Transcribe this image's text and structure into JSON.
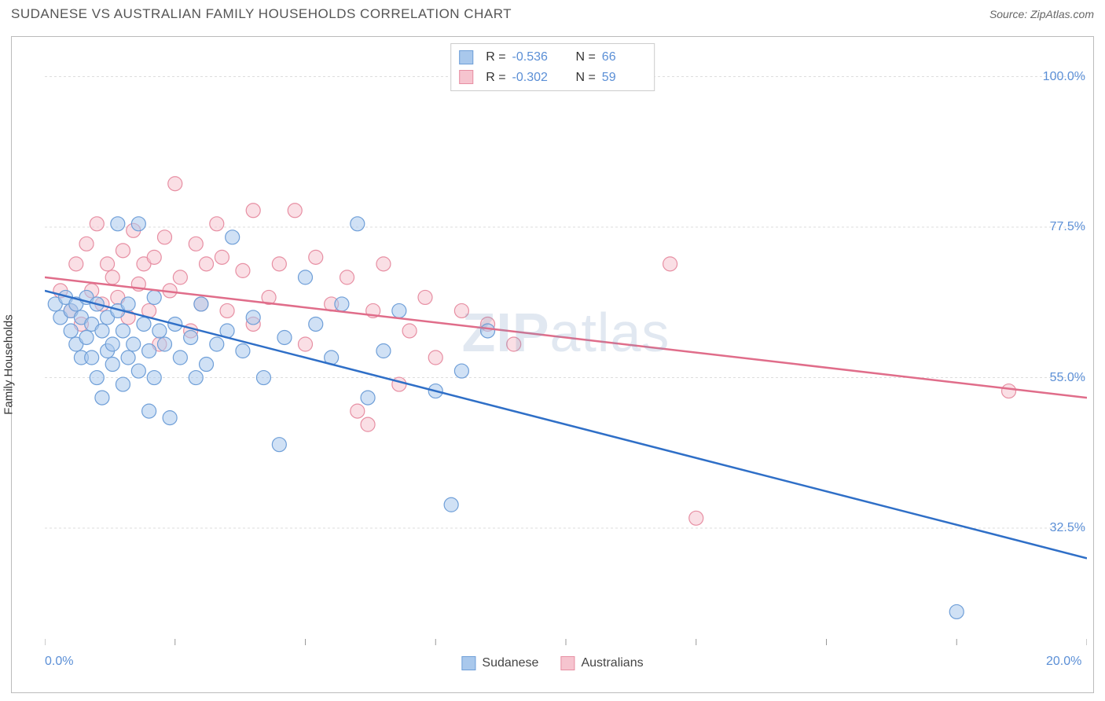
{
  "header": {
    "title": "SUDANESE VS AUSTRALIAN FAMILY HOUSEHOLDS CORRELATION CHART",
    "source": "Source: ZipAtlas.com"
  },
  "chart": {
    "type": "scatter",
    "ylabel": "Family Households",
    "background_color": "#ffffff",
    "grid_color": "#dddddd",
    "border_color": "#bbbbbb",
    "xlim": [
      0,
      20
    ],
    "ylim": [
      15,
      105
    ],
    "x_ticks": [
      0,
      2.5,
      5,
      7.5,
      10,
      12.5,
      15,
      17.5,
      20
    ],
    "x_tick_labels": {
      "0": "0.0%",
      "20": "20.0%"
    },
    "y_ticks": [
      32.5,
      55.0,
      77.5,
      100.0
    ],
    "y_tick_labels": [
      "32.5%",
      "55.0%",
      "77.5%",
      "100.0%"
    ],
    "y_label_color": "#5b8fd6",
    "x_label_color": "#5b8fd6",
    "marker_radius": 9,
    "marker_opacity": 0.55,
    "line_width": 2.5,
    "watermark": {
      "zip": "ZIP",
      "atlas": "atlas"
    },
    "series": [
      {
        "name": "Sudanese",
        "color_fill": "#a9c8ec",
        "color_stroke": "#6f9fd8",
        "line_color": "#2f6fc7",
        "R": "-0.536",
        "N": "66",
        "trend": {
          "x1": 0,
          "y1": 68,
          "x2": 20,
          "y2": 28
        },
        "points": [
          [
            0.2,
            66
          ],
          [
            0.3,
            64
          ],
          [
            0.4,
            67
          ],
          [
            0.5,
            62
          ],
          [
            0.5,
            65
          ],
          [
            0.6,
            60
          ],
          [
            0.6,
            66
          ],
          [
            0.7,
            58
          ],
          [
            0.7,
            64
          ],
          [
            0.8,
            67
          ],
          [
            0.8,
            61
          ],
          [
            0.9,
            63
          ],
          [
            0.9,
            58
          ],
          [
            1.0,
            66
          ],
          [
            1.0,
            55
          ],
          [
            1.1,
            62
          ],
          [
            1.1,
            52
          ],
          [
            1.2,
            64
          ],
          [
            1.2,
            59
          ],
          [
            1.3,
            57
          ],
          [
            1.3,
            60
          ],
          [
            1.4,
            65
          ],
          [
            1.4,
            78
          ],
          [
            1.5,
            62
          ],
          [
            1.5,
            54
          ],
          [
            1.6,
            58
          ],
          [
            1.6,
            66
          ],
          [
            1.7,
            60
          ],
          [
            1.8,
            56
          ],
          [
            1.8,
            78
          ],
          [
            1.9,
            63
          ],
          [
            2.0,
            50
          ],
          [
            2.0,
            59
          ],
          [
            2.1,
            55
          ],
          [
            2.1,
            67
          ],
          [
            2.2,
            62
          ],
          [
            2.3,
            60
          ],
          [
            2.4,
            49
          ],
          [
            2.5,
            63
          ],
          [
            2.6,
            58
          ],
          [
            2.8,
            61
          ],
          [
            2.9,
            55
          ],
          [
            3.0,
            66
          ],
          [
            3.1,
            57
          ],
          [
            3.3,
            60
          ],
          [
            3.5,
            62
          ],
          [
            3.6,
            76
          ],
          [
            3.8,
            59
          ],
          [
            4.0,
            64
          ],
          [
            4.2,
            55
          ],
          [
            4.5,
            45
          ],
          [
            4.6,
            61
          ],
          [
            5.0,
            70
          ],
          [
            5.2,
            63
          ],
          [
            5.5,
            58
          ],
          [
            5.7,
            66
          ],
          [
            6.0,
            78
          ],
          [
            6.2,
            52
          ],
          [
            6.5,
            59
          ],
          [
            6.8,
            65
          ],
          [
            7.5,
            53
          ],
          [
            7.8,
            36
          ],
          [
            8.0,
            56
          ],
          [
            8.5,
            62
          ],
          [
            17.5,
            20
          ]
        ]
      },
      {
        "name": "Australians",
        "color_fill": "#f6c4cf",
        "color_stroke": "#e78fa3",
        "line_color": "#e06d8a",
        "R": "-0.302",
        "N": "59",
        "trend": {
          "x1": 0,
          "y1": 70,
          "x2": 20,
          "y2": 52
        },
        "points": [
          [
            0.3,
            68
          ],
          [
            0.5,
            65
          ],
          [
            0.6,
            72
          ],
          [
            0.7,
            63
          ],
          [
            0.8,
            75
          ],
          [
            0.9,
            68
          ],
          [
            1.0,
            78
          ],
          [
            1.1,
            66
          ],
          [
            1.2,
            72
          ],
          [
            1.3,
            70
          ],
          [
            1.4,
            67
          ],
          [
            1.5,
            74
          ],
          [
            1.6,
            64
          ],
          [
            1.7,
            77
          ],
          [
            1.8,
            69
          ],
          [
            1.9,
            72
          ],
          [
            2.0,
            65
          ],
          [
            2.1,
            73
          ],
          [
            2.2,
            60
          ],
          [
            2.3,
            76
          ],
          [
            2.4,
            68
          ],
          [
            2.5,
            84
          ],
          [
            2.6,
            70
          ],
          [
            2.8,
            62
          ],
          [
            2.9,
            75
          ],
          [
            3.0,
            66
          ],
          [
            3.1,
            72
          ],
          [
            3.3,
            78
          ],
          [
            3.4,
            73
          ],
          [
            3.5,
            65
          ],
          [
            3.8,
            71
          ],
          [
            4.0,
            80
          ],
          [
            4.0,
            63
          ],
          [
            4.3,
            67
          ],
          [
            4.5,
            72
          ],
          [
            4.8,
            80
          ],
          [
            5.0,
            60
          ],
          [
            5.2,
            73
          ],
          [
            5.5,
            66
          ],
          [
            5.8,
            70
          ],
          [
            6.0,
            50
          ],
          [
            6.2,
            48
          ],
          [
            6.3,
            65
          ],
          [
            6.5,
            72
          ],
          [
            6.8,
            54
          ],
          [
            7.0,
            62
          ],
          [
            7.3,
            67
          ],
          [
            7.5,
            58
          ],
          [
            8.0,
            65
          ],
          [
            8.5,
            63
          ],
          [
            9.0,
            60
          ],
          [
            12.0,
            72
          ],
          [
            12.5,
            34
          ],
          [
            18.5,
            53
          ]
        ]
      }
    ],
    "top_legend": {
      "r_label": "R =",
      "n_label": "N ="
    },
    "bottom_legend": [
      {
        "label": "Sudanese",
        "series": 0
      },
      {
        "label": "Australians",
        "series": 1
      }
    ]
  }
}
